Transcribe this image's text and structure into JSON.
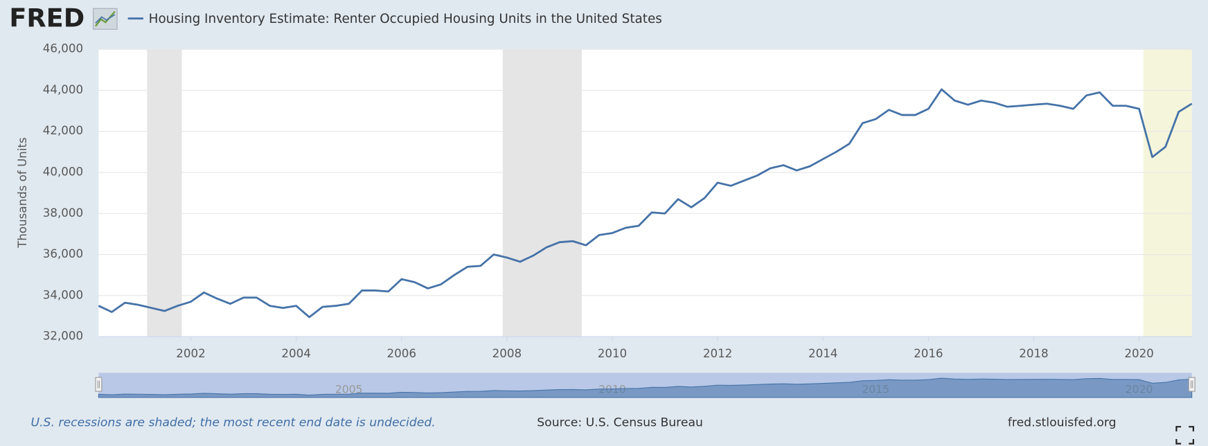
{
  "chart_data": {
    "type": "line",
    "logo": "FRED",
    "title": "Housing Inventory Estimate: Renter Occupied Housing Units in the United States",
    "y_label": "Thousands of Units",
    "x": [
      2000.25,
      2000.5,
      2000.75,
      2001,
      2001.25,
      2001.5,
      2001.75,
      2002,
      2002.25,
      2002.5,
      2002.75,
      2003,
      2003.25,
      2003.5,
      2003.75,
      2004,
      2004.25,
      2004.5,
      2004.75,
      2005,
      2005.25,
      2005.5,
      2005.75,
      2006,
      2006.25,
      2006.5,
      2006.75,
      2007,
      2007.25,
      2007.5,
      2007.75,
      2008,
      2008.25,
      2008.5,
      2008.75,
      2009,
      2009.25,
      2009.5,
      2009.75,
      2010,
      2010.25,
      2010.5,
      2010.75,
      2011,
      2011.25,
      2011.5,
      2011.75,
      2012,
      2012.25,
      2012.5,
      2012.75,
      2013,
      2013.25,
      2013.5,
      2013.75,
      2014,
      2014.25,
      2014.5,
      2014.75,
      2015,
      2015.25,
      2015.5,
      2015.75,
      2016,
      2016.25,
      2016.5,
      2016.75,
      2017,
      2017.25,
      2017.5,
      2017.75,
      2018,
      2018.25,
      2018.5,
      2018.75,
      2019,
      2019.25,
      2019.5,
      2019.75,
      2020,
      2020.25,
      2020.5,
      2020.75,
      2021
    ],
    "series": [
      {
        "name": "Housing Inventory Estimate: Renter Occupied Housing Units in the United States",
        "color": "#4572a7",
        "values": [
          33500,
          33200,
          33650,
          33550,
          33400,
          33250,
          33500,
          33700,
          34150,
          33850,
          33600,
          33900,
          33900,
          33500,
          33400,
          33500,
          32950,
          33450,
          33500,
          33600,
          34250,
          34250,
          34200,
          34800,
          34650,
          34350,
          34550,
          35000,
          35400,
          35450,
          36000,
          35850,
          35650,
          35950,
          36350,
          36600,
          36650,
          36450,
          36950,
          37050,
          37300,
          37400,
          38050,
          38000,
          38700,
          38300,
          38750,
          39500,
          39350,
          39600,
          39850,
          40200,
          40350,
          40100,
          40300,
          40650,
          41000,
          41400,
          42400,
          42600,
          43050,
          42800,
          42800,
          43100,
          44050,
          43500,
          43300,
          43500,
          43400,
          43200,
          43250,
          43300,
          43350,
          43250,
          43100,
          43750,
          43900,
          43250,
          43250,
          43100,
          40750,
          41250,
          42950,
          43350
        ]
      }
    ],
    "xlim": [
      2000.25,
      2021
    ],
    "xticks": [
      2002,
      2004,
      2006,
      2008,
      2010,
      2012,
      2014,
      2016,
      2018,
      2020
    ],
    "ylim": [
      32000,
      46000
    ],
    "yticks": [
      {
        "value": 32000,
        "label": "32,000"
      },
      {
        "value": 34000,
        "label": "34,000"
      },
      {
        "value": 36000,
        "label": "36,000"
      },
      {
        "value": 38000,
        "label": "38,000"
      },
      {
        "value": 40000,
        "label": "40,000"
      },
      {
        "value": 42000,
        "label": "42,000"
      },
      {
        "value": 44000,
        "label": "44,000"
      },
      {
        "value": 46000,
        "label": "46,000"
      }
    ],
    "grid": true,
    "recessions": [
      [
        2001.17,
        2001.83
      ],
      [
        2007.92,
        2009.42
      ]
    ],
    "recession_color": "#e5e5e5",
    "undecided_recession": [
      2020.08,
      2021
    ],
    "undecided_color": "#f5f5dc",
    "navigator_ticks": [
      2005,
      2010,
      2015,
      2020
    ],
    "note": "U.S. recessions are shaded; the most recent end date is undecided.",
    "source": "Source: U.S. Census Bureau",
    "site": "fred.stlouisfed.org"
  }
}
